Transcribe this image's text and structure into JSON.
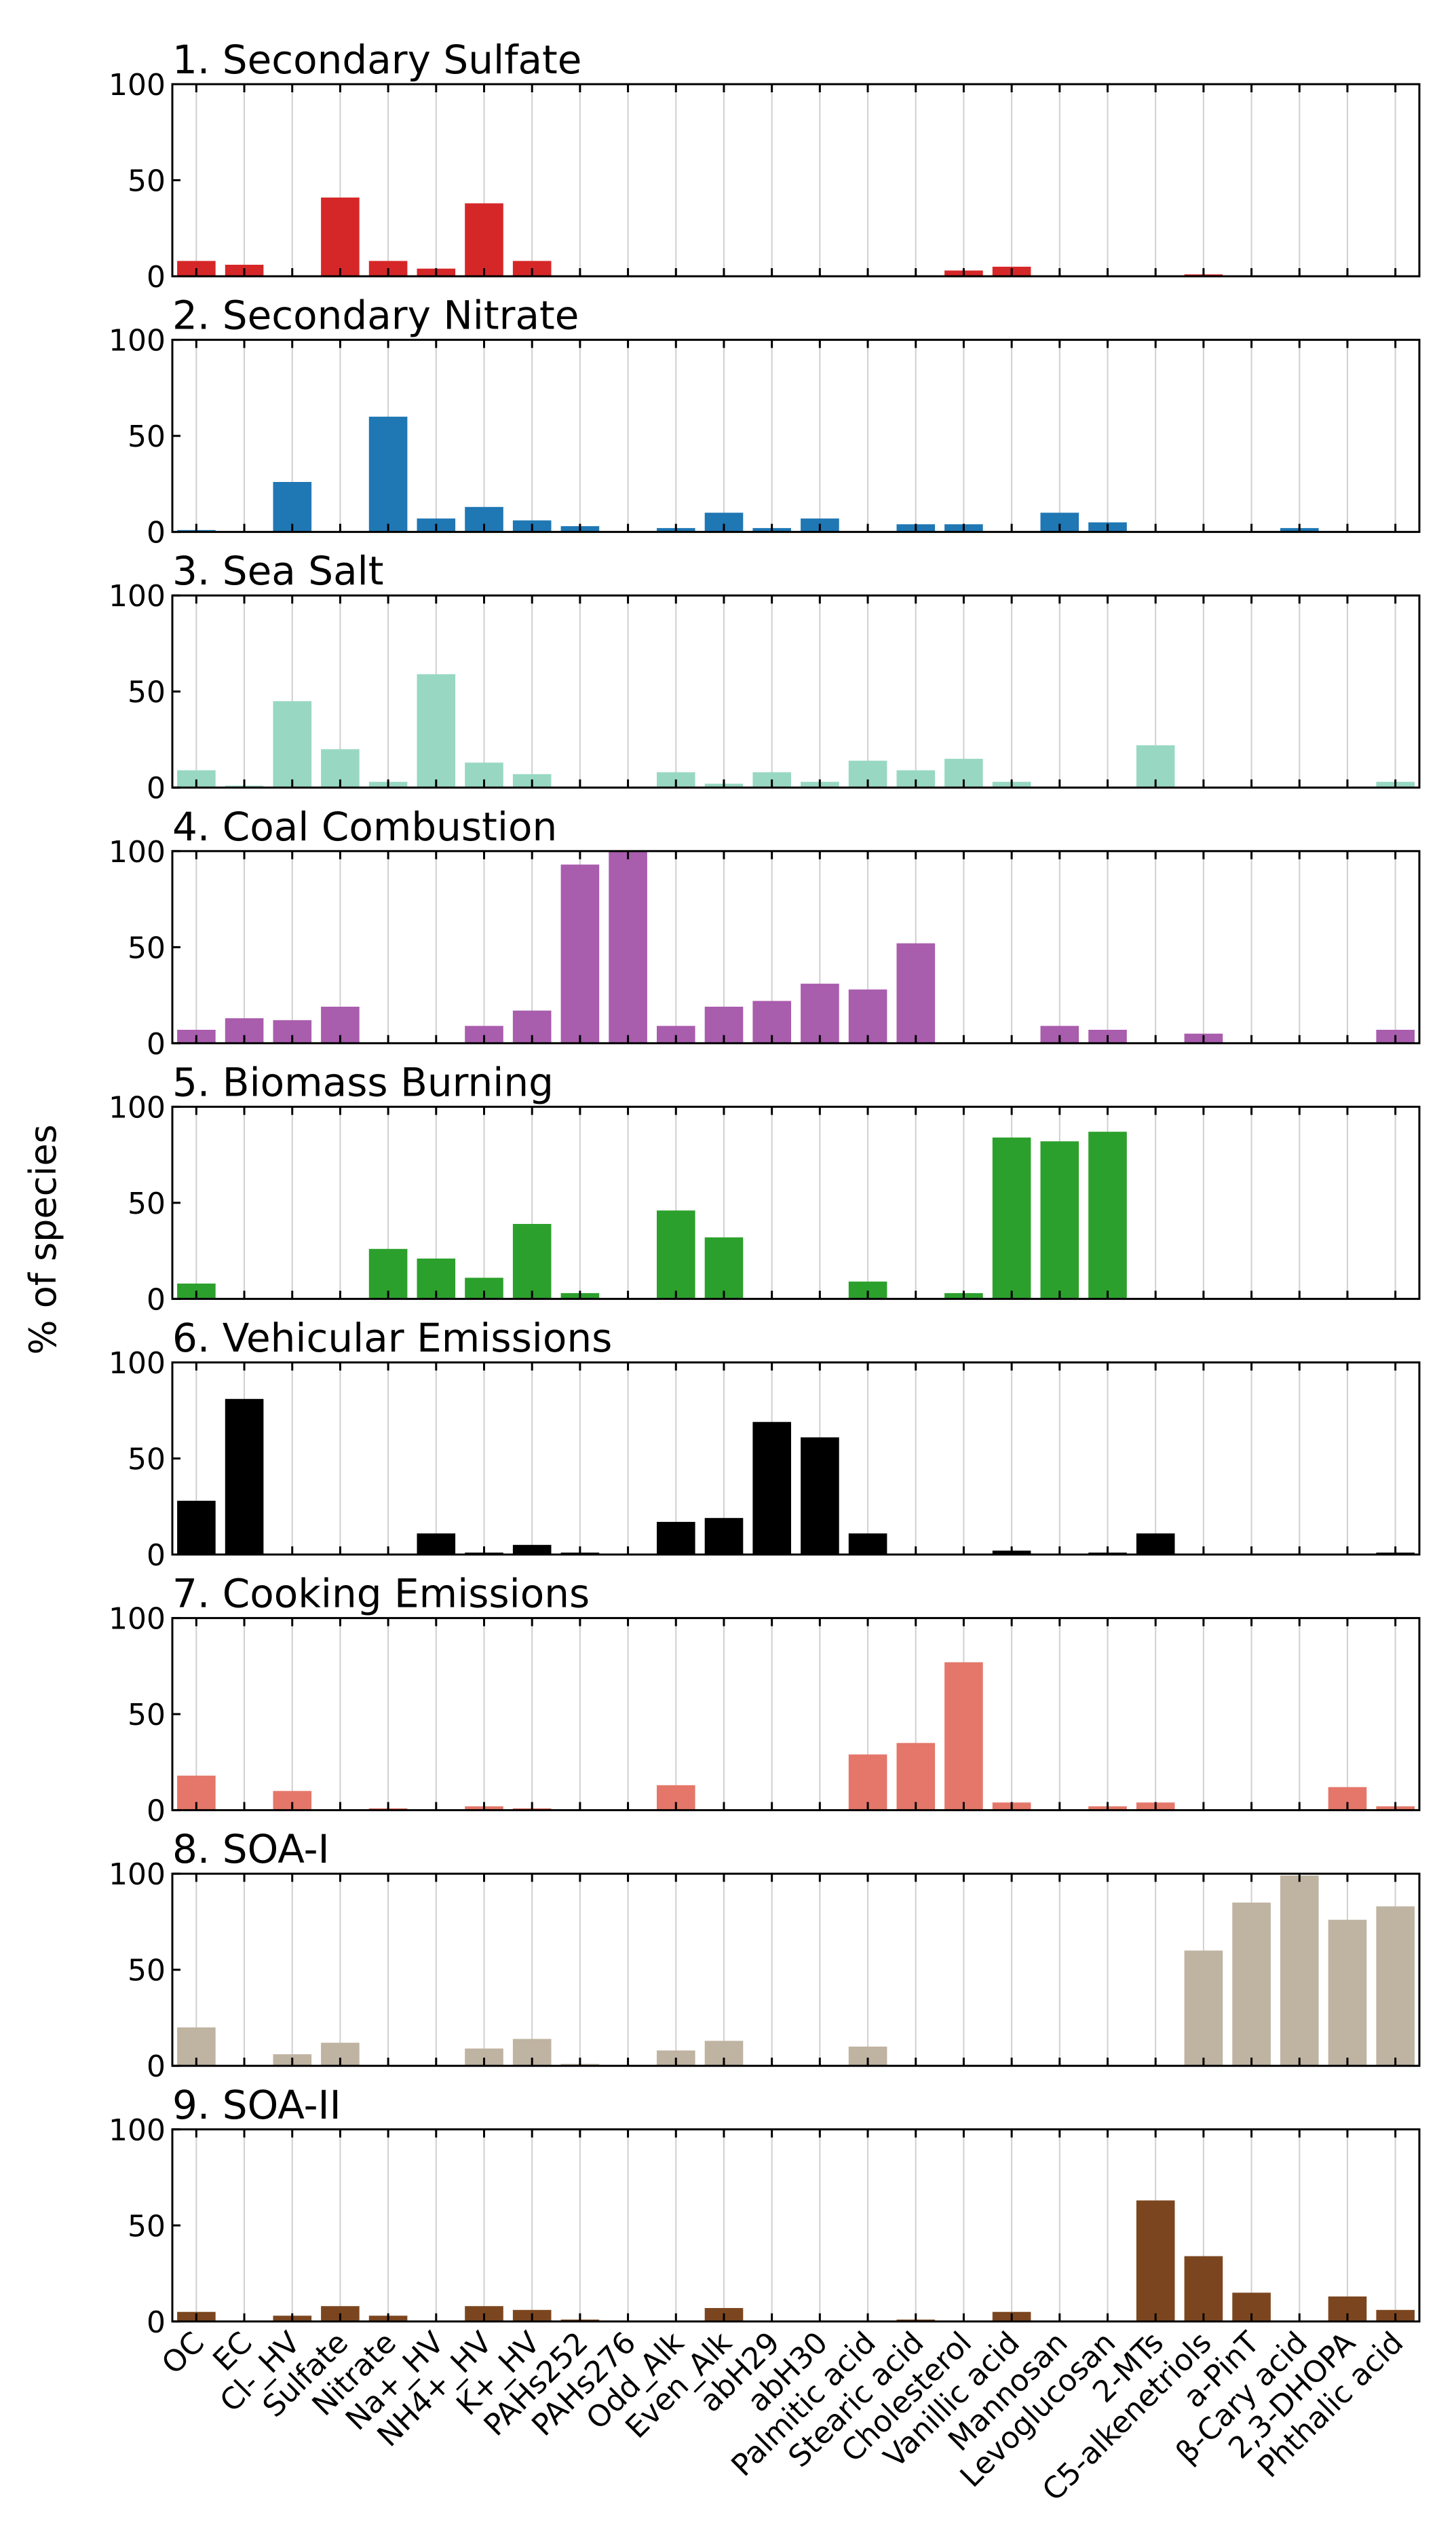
{
  "figure": {
    "ylabel": "% of species"
  },
  "chart_data": {
    "type": "bar",
    "ylabel": "% of species",
    "ylim": [
      0,
      100
    ],
    "yticks": [
      0,
      50,
      100
    ],
    "grid": "vertical",
    "categories": [
      "OC",
      "EC",
      "Cl-_HV",
      "Sulfate",
      "Nitrate",
      "Na+_HV",
      "NH4+_HV",
      "K+_HV",
      "PAHs252",
      "PAHs276",
      "Odd_Alk",
      "Even_Alk",
      "abH29",
      "abH30",
      "Palmitic acid",
      "Stearic acid",
      "Cholesterol",
      "Vanillic acid",
      "Mannosan",
      "Levoglucosan",
      "2-MTs",
      "C5-alkenetriols",
      "a-PinT",
      "β-Cary acid",
      "2,3-DHOPA",
      "Phthalic acid"
    ],
    "panels": [
      {
        "title": "1. Secondary Sulfate",
        "color": "#d62728",
        "values": [
          8,
          6,
          0,
          41,
          8,
          4,
          38,
          8,
          0,
          0,
          0,
          0,
          0,
          0,
          0,
          0,
          3,
          5,
          0,
          0,
          0,
          1,
          0,
          0,
          0,
          0
        ]
      },
      {
        "title": "2. Secondary Nitrate",
        "color": "#1f77b4",
        "values": [
          1,
          0,
          26,
          0,
          60,
          7,
          13,
          6,
          3,
          0,
          2,
          10,
          2,
          7,
          0,
          4,
          4,
          0,
          10,
          5,
          0,
          0,
          0,
          2,
          0,
          0
        ]
      },
      {
        "title": "3. Sea Salt",
        "color": "#98d8c3",
        "values": [
          9,
          1,
          45,
          20,
          3,
          59,
          13,
          7,
          0,
          0,
          8,
          2,
          8,
          3,
          14,
          9,
          15,
          3,
          0,
          0,
          22,
          0,
          0,
          0,
          0,
          3
        ]
      },
      {
        "title": "4. Coal Combustion",
        "color": "#a95dad",
        "values": [
          7,
          13,
          12,
          19,
          0,
          0,
          9,
          17,
          93,
          100,
          9,
          19,
          22,
          31,
          28,
          52,
          0,
          0,
          9,
          7,
          0,
          5,
          0,
          0,
          0,
          7
        ]
      },
      {
        "title": "5. Biomass Burning",
        "color": "#2ca02c",
        "values": [
          8,
          0,
          0,
          0,
          26,
          21,
          11,
          39,
          3,
          0,
          46,
          32,
          0,
          0,
          9,
          0,
          3,
          84,
          82,
          87,
          0,
          0,
          0,
          0,
          0,
          0
        ]
      },
      {
        "title": "6. Vehicular Emissions",
        "color": "#000000",
        "values": [
          28,
          81,
          0,
          0,
          0,
          11,
          1,
          5,
          1,
          0,
          17,
          19,
          69,
          61,
          11,
          0,
          0,
          2,
          0,
          1,
          11,
          0,
          0,
          0,
          0,
          1
        ]
      },
      {
        "title": "7. Cooking Emissions",
        "color": "#e4776a",
        "values": [
          18,
          0,
          10,
          0,
          1,
          0,
          2,
          1,
          0,
          0,
          13,
          0,
          0,
          0,
          29,
          35,
          77,
          4,
          0,
          2,
          4,
          0,
          0,
          0,
          12,
          2
        ]
      },
      {
        "title": "8. SOA-I",
        "color": "#bfb3a1",
        "values": [
          20,
          0,
          6,
          12,
          0,
          0,
          9,
          14,
          1,
          0,
          8,
          13,
          0,
          0,
          10,
          0,
          0,
          0,
          0,
          0,
          0,
          60,
          85,
          99,
          76,
          83
        ]
      },
      {
        "title": "9. SOA-II",
        "color": "#7b461f",
        "values": [
          5,
          0,
          3,
          8,
          3,
          0,
          8,
          6,
          1,
          0,
          0,
          7,
          0,
          0,
          0,
          1,
          0,
          5,
          0,
          0,
          63,
          34,
          15,
          0,
          13,
          6
        ]
      }
    ]
  }
}
